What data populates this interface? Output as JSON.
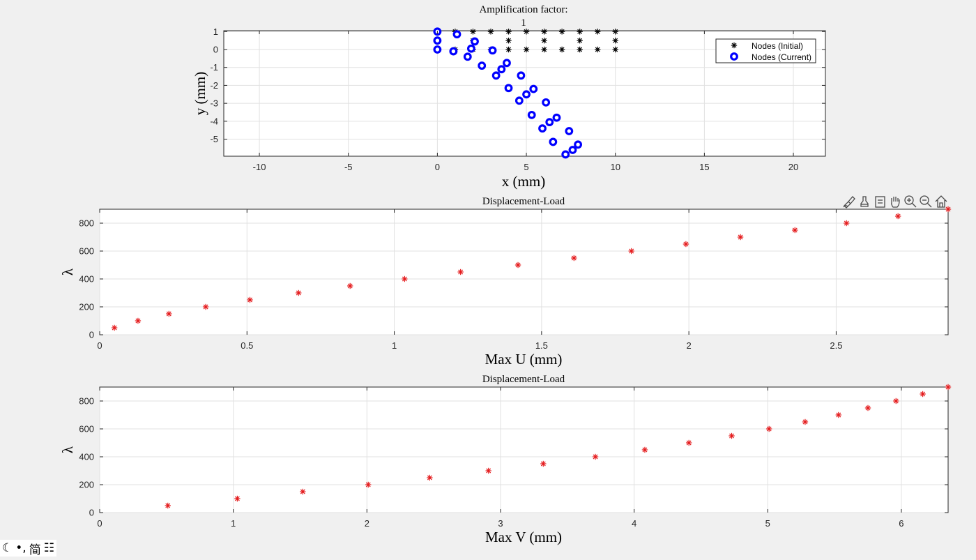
{
  "window": {
    "width": 1400,
    "height": 803
  },
  "plots": [
    {
      "id": "mesh",
      "title": "Amplification factor:",
      "subtitle": "1",
      "xlabel": "x (mm)",
      "ylabel": "y (mm)",
      "xlim": [
        -12,
        21.8
      ],
      "ylim": [
        -5.95,
        1.05
      ],
      "xticks": [
        -10,
        -5,
        0,
        5,
        10,
        15,
        20
      ],
      "yticks": [
        -5,
        -4,
        -3,
        -2,
        -1,
        0,
        1
      ],
      "grid": true,
      "legend": {
        "placement": "top-right",
        "entries": [
          "Nodes (Initial)",
          "Nodes (Current)"
        ]
      }
    },
    {
      "id": "disp-u",
      "title": "Displacement-Load",
      "xlabel": "Max U (mm)",
      "ylabel": "λ",
      "xlim": [
        0,
        2.88
      ],
      "ylim": [
        0,
        900
      ],
      "xticks": [
        0,
        0.5,
        1,
        1.5,
        2,
        2.5
      ],
      "yticks": [
        0,
        200,
        400,
        600,
        800
      ],
      "grid": true
    },
    {
      "id": "disp-v",
      "title": "Displacement-Load",
      "xlabel": "Max V (mm)",
      "ylabel": "λ",
      "xlim": [
        0,
        6.35
      ],
      "ylim": [
        0,
        900
      ],
      "xticks": [
        0,
        1,
        2,
        3,
        4,
        5,
        6
      ],
      "yticks": [
        0,
        200,
        400,
        600,
        800
      ],
      "grid": true
    }
  ],
  "chart_data": [
    {
      "type": "scatter",
      "title": "Amplification factor:",
      "subtitle": "1",
      "xlabel": "x (mm)",
      "ylabel": "y (mm)",
      "xlim": [
        -12,
        21.8
      ],
      "ylim": [
        -5.95,
        1.05
      ],
      "series": [
        {
          "name": "Nodes (Initial)",
          "marker": "asterisk",
          "color": "#000000",
          "points": [
            [
              0,
              1
            ],
            [
              1,
              1
            ],
            [
              2,
              1
            ],
            [
              3,
              1
            ],
            [
              4,
              1
            ],
            [
              5,
              1
            ],
            [
              6,
              1
            ],
            [
              7,
              1
            ],
            [
              8,
              1
            ],
            [
              9,
              1
            ],
            [
              10,
              1
            ],
            [
              0,
              0.5
            ],
            [
              2,
              0.5
            ],
            [
              4,
              0.5
            ],
            [
              6,
              0.5
            ],
            [
              8,
              0.5
            ],
            [
              10,
              0.5
            ],
            [
              0,
              0
            ],
            [
              1,
              0
            ],
            [
              2,
              0
            ],
            [
              3,
              0
            ],
            [
              4,
              0
            ],
            [
              5,
              0
            ],
            [
              6,
              0
            ],
            [
              7,
              0
            ],
            [
              8,
              0
            ],
            [
              9,
              0
            ],
            [
              10,
              0
            ]
          ]
        },
        {
          "name": "Nodes (Current)",
          "marker": "circle",
          "color": "#0000ff",
          "points": [
            [
              0,
              1
            ],
            [
              1.1,
              0.85
            ],
            [
              2.1,
              0.45
            ],
            [
              1.9,
              0.05
            ],
            [
              0.9,
              -0.1
            ],
            [
              0,
              0
            ],
            [
              0,
              0.5
            ],
            [
              3.1,
              -0.05
            ],
            [
              1.7,
              -0.4
            ],
            [
              2.5,
              -0.9
            ],
            [
              3.9,
              -0.75
            ],
            [
              3.6,
              -1.1
            ],
            [
              3.3,
              -1.45
            ],
            [
              4.7,
              -1.45
            ],
            [
              5.4,
              -2.2
            ],
            [
              5,
              -2.5
            ],
            [
              4.0,
              -2.15
            ],
            [
              4.6,
              -2.85
            ],
            [
              6.1,
              -2.95
            ],
            [
              5.3,
              -3.65
            ],
            [
              6.7,
              -3.8
            ],
            [
              6.3,
              -4.05
            ],
            [
              5.9,
              -4.4
            ],
            [
              7.4,
              -4.55
            ],
            [
              6.5,
              -5.15
            ],
            [
              7.9,
              -5.3
            ],
            [
              7.6,
              -5.6
            ],
            [
              7.2,
              -5.85
            ]
          ]
        }
      ]
    },
    {
      "type": "scatter",
      "title": "Displacement-Load",
      "xlabel": "Max U (mm)",
      "ylabel": "λ",
      "xlim": [
        0,
        2.88
      ],
      "ylim": [
        0,
        900
      ],
      "series": [
        {
          "marker": "asterisk",
          "color": "#e41a1c",
          "points": [
            [
              0.05,
              50
            ],
            [
              0.13,
              100
            ],
            [
              0.235,
              150
            ],
            [
              0.36,
              200
            ],
            [
              0.51,
              250
            ],
            [
              0.675,
              300
            ],
            [
              0.85,
              350
            ],
            [
              1.035,
              400
            ],
            [
              1.225,
              450
            ],
            [
              1.42,
              500
            ],
            [
              1.61,
              550
            ],
            [
              1.805,
              600
            ],
            [
              1.99,
              650
            ],
            [
              2.175,
              700
            ],
            [
              2.36,
              750
            ],
            [
              2.535,
              800
            ],
            [
              2.71,
              850
            ],
            [
              2.88,
              900
            ]
          ]
        }
      ]
    },
    {
      "type": "scatter",
      "title": "Displacement-Load",
      "xlabel": "Max V (mm)",
      "ylabel": "λ",
      "xlim": [
        0,
        6.35
      ],
      "ylim": [
        0,
        900
      ],
      "series": [
        {
          "marker": "asterisk",
          "color": "#e41a1c",
          "points": [
            [
              0.51,
              50
            ],
            [
              1.03,
              100
            ],
            [
              1.52,
              150
            ],
            [
              2.01,
              200
            ],
            [
              2.47,
              250
            ],
            [
              2.91,
              300
            ],
            [
              3.32,
              350
            ],
            [
              3.71,
              400
            ],
            [
              4.08,
              450
            ],
            [
              4.41,
              500
            ],
            [
              4.73,
              550
            ],
            [
              5.01,
              600
            ],
            [
              5.28,
              650
            ],
            [
              5.53,
              700
            ],
            [
              5.75,
              750
            ],
            [
              5.96,
              800
            ],
            [
              6.16,
              850
            ],
            [
              6.35,
              900
            ]
          ]
        }
      ]
    }
  ],
  "toolbar": {
    "icons": [
      "brush-icon",
      "data-tips-icon",
      "datacursor-icon",
      "pan-hand-icon",
      "zoom-in-icon",
      "zoom-out-icon",
      "home-icon"
    ]
  },
  "ime": {
    "glyph1": "☾",
    "glyph2": "•,",
    "glyph3": "简",
    "glyph4": "☷"
  }
}
